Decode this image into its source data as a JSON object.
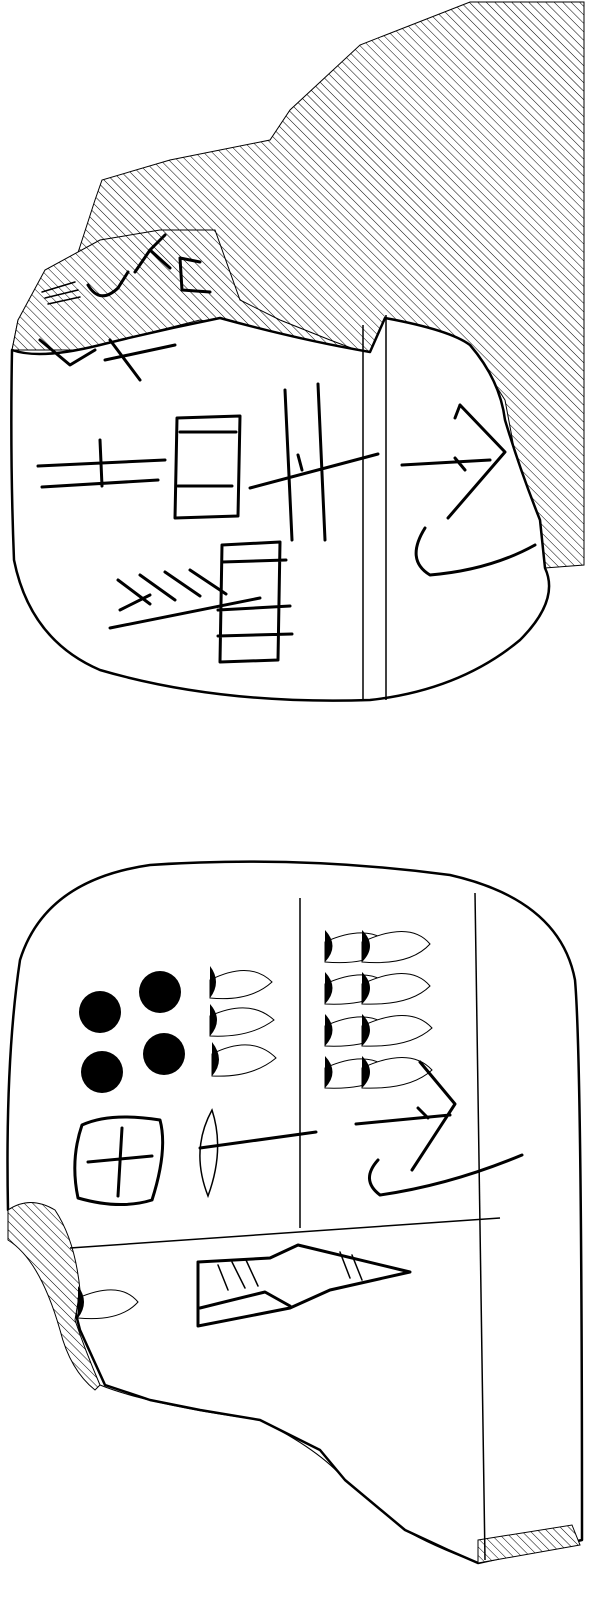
{
  "figure": {
    "views": [
      {
        "id": "obverse",
        "hatch_color": "#000000",
        "sign_style": "incised"
      },
      {
        "id": "reverse",
        "numeral_circles": 4,
        "numeral_cups": 3,
        "cups_grid": 8
      }
    ]
  }
}
